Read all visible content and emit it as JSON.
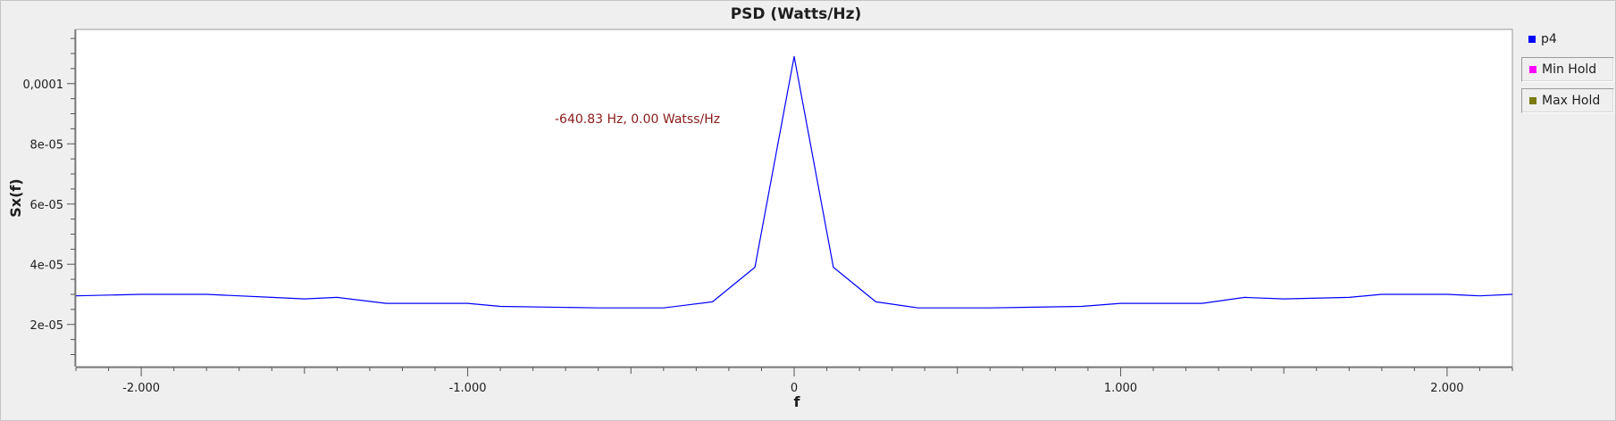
{
  "chart_data": {
    "type": "line",
    "title": "PSD (Watts/Hz)",
    "xlabel": "f",
    "ylabel": "Sx(f)",
    "xlim": [
      -2.2,
      2.2
    ],
    "ylim": [
      6e-06,
      0.000118
    ],
    "x_ticks": [
      -2.0,
      -1.0,
      0,
      1.0,
      2.0
    ],
    "x_tick_labels": [
      "-2.000",
      "-1.000",
      "0",
      "1.000",
      "2.000"
    ],
    "y_ticks": [
      2e-05,
      4e-05,
      6e-05,
      8e-05,
      0.0001
    ],
    "y_tick_labels": [
      "2e-05",
      "4e-05",
      "6e-05",
      "8e-05",
      "0,0001"
    ],
    "grid": false,
    "legend_position": "right",
    "series": [
      {
        "name": "p4",
        "color": "#0000ff",
        "x": [
          -2.2,
          -2.0,
          -1.8,
          -1.6,
          -1.5,
          -1.4,
          -1.25,
          -1.0,
          -0.9,
          -0.6,
          -0.4,
          -0.25,
          -0.12,
          0,
          0.12,
          0.25,
          0.38,
          0.6,
          0.88,
          1.0,
          1.25,
          1.38,
          1.5,
          1.7,
          1.8,
          2.0,
          2.1,
          2.2
        ],
        "y": [
          2.95e-05,
          3e-05,
          3e-05,
          2.9e-05,
          2.85e-05,
          2.9e-05,
          2.7e-05,
          2.7e-05,
          2.6e-05,
          2.55e-05,
          2.55e-05,
          2.75e-05,
          3.9e-05,
          0.000109,
          3.9e-05,
          2.75e-05,
          2.55e-05,
          2.55e-05,
          2.6e-05,
          2.7e-05,
          2.7e-05,
          2.9e-05,
          2.85e-05,
          2.9e-05,
          3e-05,
          3e-05,
          2.95e-05,
          3e-05
        ]
      }
    ],
    "legend": [
      {
        "name": "p4",
        "color": "#0000ff"
      },
      {
        "name": "Min Hold",
        "color": "#ff00ff"
      },
      {
        "name": "Max Hold",
        "color": "#7a7a10"
      }
    ],
    "annotation": {
      "text": "-640.83 Hz, 0.00 Watss/Hz",
      "color": "#8b1a1a"
    }
  }
}
